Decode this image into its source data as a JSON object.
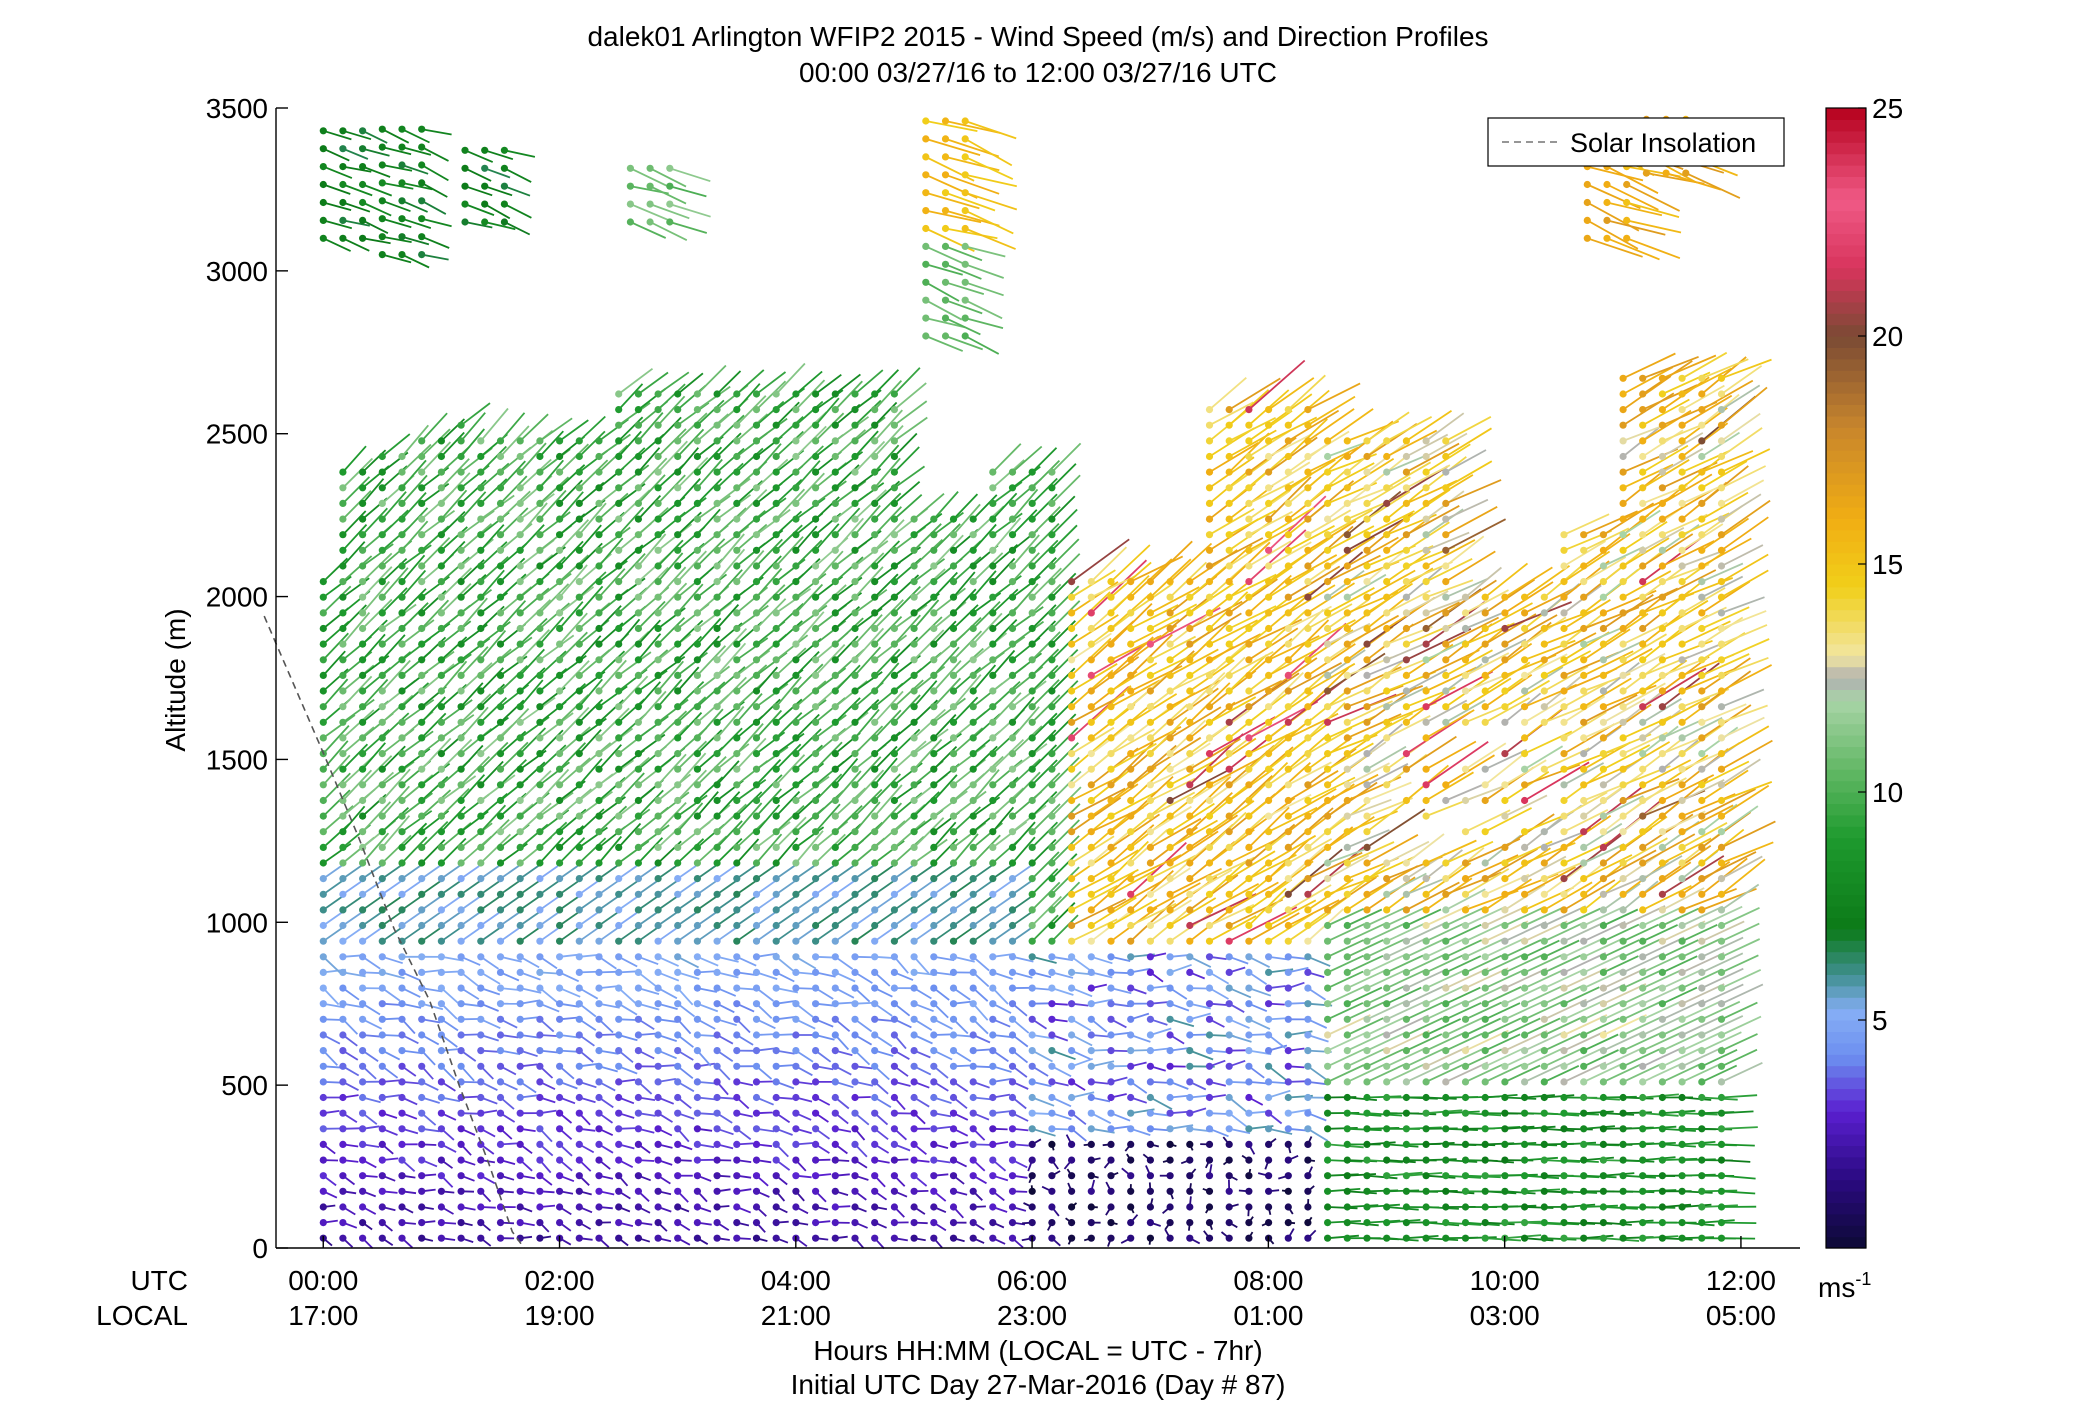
{
  "chart_data": {
    "type": "wind-barb-profile",
    "title": "dalek01 Arlington WFIP2 2015 - Wind Speed (m/s) and Direction Profiles",
    "subtitle": "00:00 03/27/16 to 12:00 03/27/16  UTC",
    "ylabel": "Altitude (m)",
    "xlabel": "Hours HH:MM  (LOCAL = UTC - 7hr)",
    "xlabel2": "Initial UTC Day 27-Mar-2016 (Day # 87)",
    "row_label_utc": "UTC",
    "row_label_local": "LOCAL",
    "ylim": [
      0,
      3500
    ],
    "xlim_hours": [
      -0.4,
      12.5
    ],
    "y_ticks": [
      0,
      500,
      1000,
      1500,
      2000,
      2500,
      3000,
      3500
    ],
    "x_ticks_hours": [
      0,
      2,
      4,
      6,
      8,
      10,
      12
    ],
    "x_tick_labels_utc": [
      "00:00",
      "02:00",
      "04:00",
      "06:00",
      "08:00",
      "10:00",
      "12:00"
    ],
    "x_tick_labels_local": [
      "17:00",
      "19:00",
      "21:00",
      "23:00",
      "01:00",
      "03:00",
      "05:00"
    ],
    "legend": {
      "position": "top-right",
      "entries": [
        {
          "name": "Solar Insolation",
          "style": "dashed",
          "color": "#888888"
        }
      ]
    },
    "colorbar": {
      "label": "ms",
      "label_exponent": "-1",
      "range": [
        0,
        25
      ],
      "ticks": [
        5,
        10,
        15,
        20,
        25
      ]
    },
    "solar_insolation_curve": [
      {
        "hour": -0.5,
        "alt": 1940
      },
      {
        "hour": 0.0,
        "alt": 1520
      },
      {
        "hour": 0.3,
        "alt": 1260
      },
      {
        "hour": 0.6,
        "alt": 980
      },
      {
        "hour": 0.9,
        "alt": 760
      },
      {
        "hour": 1.15,
        "alt": 500
      },
      {
        "hour": 1.4,
        "alt": 260
      },
      {
        "hour": 1.6,
        "alt": 50
      },
      {
        "hour": 1.7,
        "alt": 0
      }
    ],
    "wind_profile_summary": [
      {
        "period": "00:00-01:15",
        "altitude": "0-1000 m",
        "speed_ms": "1-4",
        "direction_note": "light, mostly westerly"
      },
      {
        "period": "00:00-01:15",
        "altitude": "1000-2400 m",
        "speed_ms": "8-11",
        "direction_note": "southwesterly"
      },
      {
        "period": "00:00-01:15",
        "altitude": "3000-3450 m",
        "speed_ms": "6-8",
        "direction_note": "westerly"
      },
      {
        "period": "01:15-05:15",
        "altitude": "0-1000 m",
        "speed_ms": "2-5",
        "direction_note": "west-northwest, turning with height"
      },
      {
        "period": "01:15-05:15",
        "altitude": "1000-2700 m",
        "speed_ms": "7-11",
        "direction_note": "southwesterly"
      },
      {
        "period": "06:00-07:45",
        "altitude": "0-300 m",
        "speed_ms": "0-2",
        "direction_note": "calm, variable"
      },
      {
        "period": "06:15-08:30",
        "altitude": "1000-2700 m",
        "speed_ms": "13-17",
        "direction_note": "southwesterly"
      },
      {
        "period": "08:30-11:45",
        "altitude": "0-500 m",
        "speed_ms": "7-10",
        "direction_note": "westerly"
      },
      {
        "period": "09:30-11:45",
        "altitude": "600-2700 m",
        "speed_ms": "12-17",
        "direction_note": "southwesterly"
      },
      {
        "period": "10:30-11:45",
        "altitude": "3100-3500 m",
        "speed_ms": "15-17",
        "direction_note": "southwesterly"
      }
    ]
  }
}
